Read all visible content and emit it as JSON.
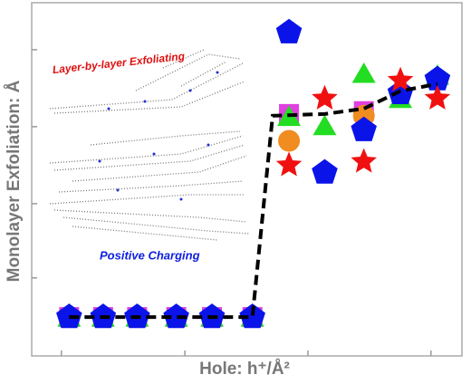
{
  "chart_data": {
    "type": "scatter",
    "xlabel": "Hole: h⁺/Å²",
    "ylabel": "Monolayer Exfoliation: Å",
    "annotations": [
      "Layer-by-layer Exfoliating",
      "Positive Charging"
    ],
    "xlim": [
      0,
      10
    ],
    "ylim": [
      0,
      10
    ],
    "xticks": [
      0.69,
      3.56,
      6.42,
      9.28
    ],
    "yticks": [
      2.21,
      4.31,
      6.49,
      8.67
    ],
    "series": [
      {
        "marker": "square",
        "color": "#e040e0",
        "x": [
          0.87,
          1.66,
          2.45,
          3.36,
          4.19,
          5.13,
          5.98,
          7.72
        ],
        "values": [
          1.1,
          1.1,
          1.1,
          1.1,
          1.1,
          1.1,
          6.85,
          6.93
        ]
      },
      {
        "marker": "triangle",
        "color": "#22dd22",
        "x": [
          0.87,
          1.66,
          2.45,
          3.36,
          4.19,
          5.13,
          5.98,
          6.81,
          7.72,
          8.57,
          9.43
        ],
        "values": [
          1.1,
          1.1,
          1.1,
          1.1,
          1.1,
          1.1,
          6.78,
          6.52,
          8.0,
          7.29,
          7.95
        ]
      },
      {
        "marker": "circle",
        "color": "#f08c20",
        "x": [
          0.87,
          1.66,
          2.45,
          3.36,
          4.19,
          5.13,
          5.98,
          7.72
        ],
        "values": [
          1.1,
          1.1,
          1.1,
          1.1,
          1.1,
          1.1,
          6.09,
          6.8
        ]
      },
      {
        "marker": "pentagon",
        "color": "#0a14e8",
        "x": [
          0.87,
          1.66,
          2.45,
          3.36,
          4.19,
          5.13,
          5.98,
          6.81,
          7.72,
          8.57,
          9.43
        ],
        "values": [
          1.1,
          1.1,
          1.1,
          1.1,
          1.1,
          1.1,
          9.16,
          5.19,
          6.39,
          7.44,
          7.83
        ]
      },
      {
        "marker": "star",
        "color": "#f01010",
        "x": [
          5.98,
          6.81,
          7.72,
          8.57,
          9.43
        ],
        "values": [
          5.4,
          7.29,
          5.5,
          7.8,
          7.29
        ]
      },
      {
        "marker": "dashed-line",
        "color": "#000000",
        "x": [
          0.87,
          5.13,
          5.6,
          6.81,
          7.72,
          8.57,
          9.43
        ],
        "values": [
          1.1,
          1.1,
          6.8,
          6.85,
          7.0,
          7.5,
          7.7
        ]
      }
    ]
  }
}
